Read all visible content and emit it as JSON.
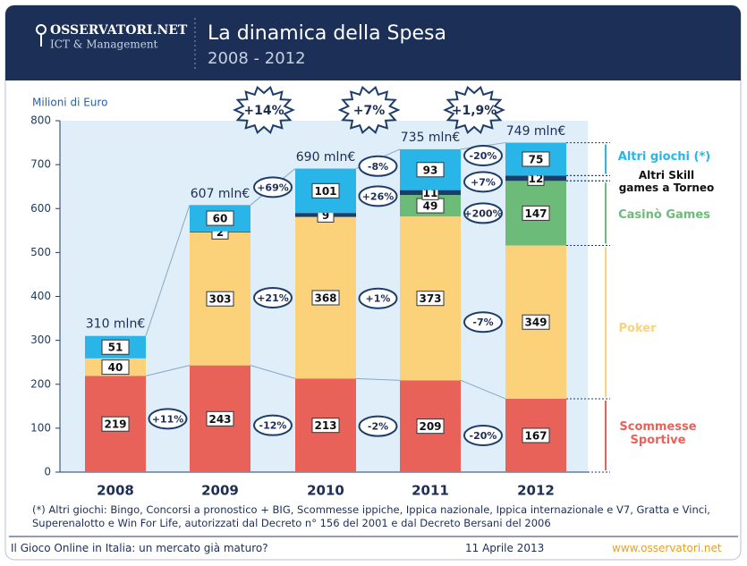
{
  "header": {
    "logo": "OSSERVATORI.NET",
    "logo_sub": "ICT & Management",
    "title": "La dinamica della Spesa",
    "subtitle": "2008 - 2012"
  },
  "chart_data": {
    "type": "stacked_bar",
    "y_label": "Milioni di Euro",
    "categories": [
      "2008",
      "2009",
      "2010",
      "2011",
      "2012"
    ],
    "series": [
      {
        "name": "Scommesse Sportive",
        "color": "#e8625a",
        "values": [
          219,
          243,
          213,
          209,
          167
        ],
        "changes": [
          "+11%",
          "-12%",
          "-2%",
          "-20%"
        ]
      },
      {
        "name": "Poker",
        "color": "#fbd27a",
        "values": [
          40,
          303,
          368,
          373,
          349
        ],
        "changes": [
          null,
          "+21%",
          "+1%",
          "-7%"
        ]
      },
      {
        "name": "Casinò Games",
        "color": "#6cbb78",
        "values": [
          null,
          null,
          null,
          49,
          147
        ],
        "changes": [
          null,
          null,
          null,
          "+200%"
        ]
      },
      {
        "name": "Altri Skill games a Torneo",
        "color": "#1c3d6b",
        "values": [
          null,
          2,
          9,
          11,
          12
        ],
        "changes": [
          null,
          null,
          "+26%",
          "+7%"
        ]
      },
      {
        "name": "Altri giochi (*)",
        "color": "#29b5e8",
        "values": [
          51,
          60,
          101,
          93,
          75
        ],
        "changes": [
          null,
          "+69%",
          "-8%",
          "-20%"
        ]
      }
    ],
    "totals": {
      "values": [
        310,
        607,
        690,
        735,
        749
      ],
      "value_labels": [
        "310 mln€",
        "607 mln€",
        "690 mln€",
        "735 mln€",
        "749 mln€"
      ]
    },
    "total_changes": [
      null,
      "+14%",
      "+7%",
      "+1,9%"
    ],
    "ylim": [
      0,
      800
    ],
    "yticks": [
      0,
      100,
      200,
      300,
      400,
      500,
      600,
      700,
      800
    ],
    "grid": false
  },
  "footnote": "(*) Altri giochi: Bingo, Concorsi a pronostico + BIG, Scommesse ippiche, Ippica nazionale, Ippica internazionale  e V7, Gratta e Vinci, Superenalotto e Win For Life, autorizzati dal Decreto n° 156 del 2001 e dal Decreto Bersani del 2006",
  "footer": {
    "left": "Il Gioco Online in Italia: un mercato già maturo?",
    "date": "11 Aprile 2013",
    "site": "www.osservatori.net"
  }
}
